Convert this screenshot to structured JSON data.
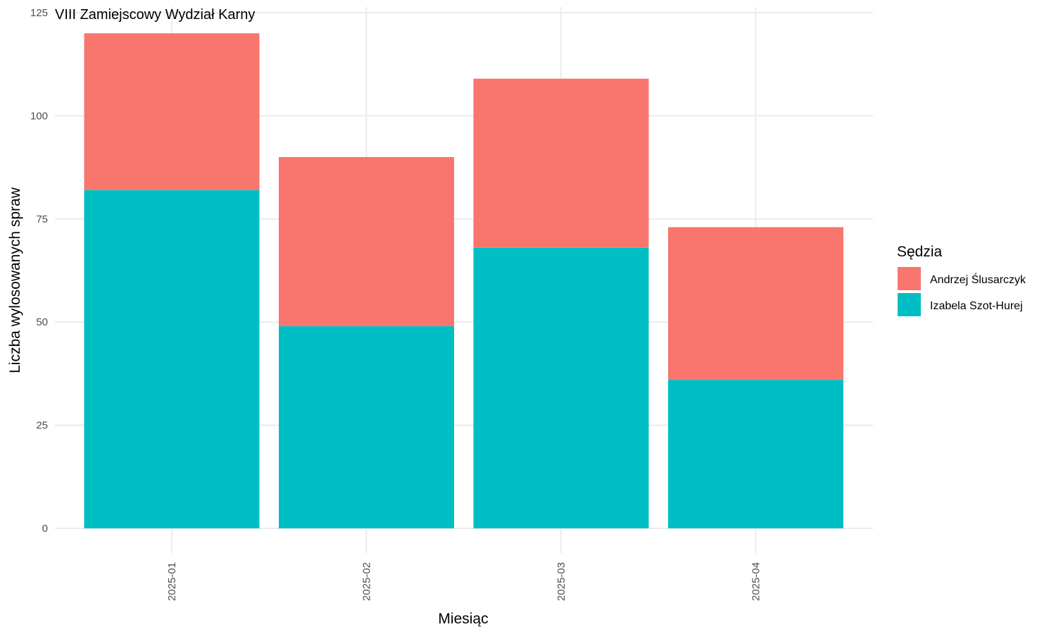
{
  "chart_data": {
    "type": "bar",
    "stacked": true,
    "title": "VIII Zamiejscowy Wydział Karny",
    "xlabel": "Miesiąc",
    "ylabel": "Liczba wylosowanych spraw",
    "categories": [
      "2025-01",
      "2025-02",
      "2025-03",
      "2025-04"
    ],
    "series": [
      {
        "name": "Izabela Szot-Hurej",
        "color": "#00BFC4",
        "values": [
          82,
          49,
          68,
          36
        ]
      },
      {
        "name": "Andrzej Ślusarczyk",
        "color": "#F8766D",
        "values": [
          38,
          41,
          41,
          37
        ]
      }
    ],
    "ylim": [
      0,
      125
    ],
    "yticks": [
      "0",
      "25",
      "50",
      "75",
      "100",
      "125"
    ],
    "grid": true,
    "legend": {
      "title": "Sędzia",
      "position": "right",
      "entries": [
        {
          "label": "Andrzej Ślusarczyk",
          "color": "#F8766D"
        },
        {
          "label": "Izabela Szot-Hurej",
          "color": "#00BFC4"
        }
      ]
    }
  }
}
